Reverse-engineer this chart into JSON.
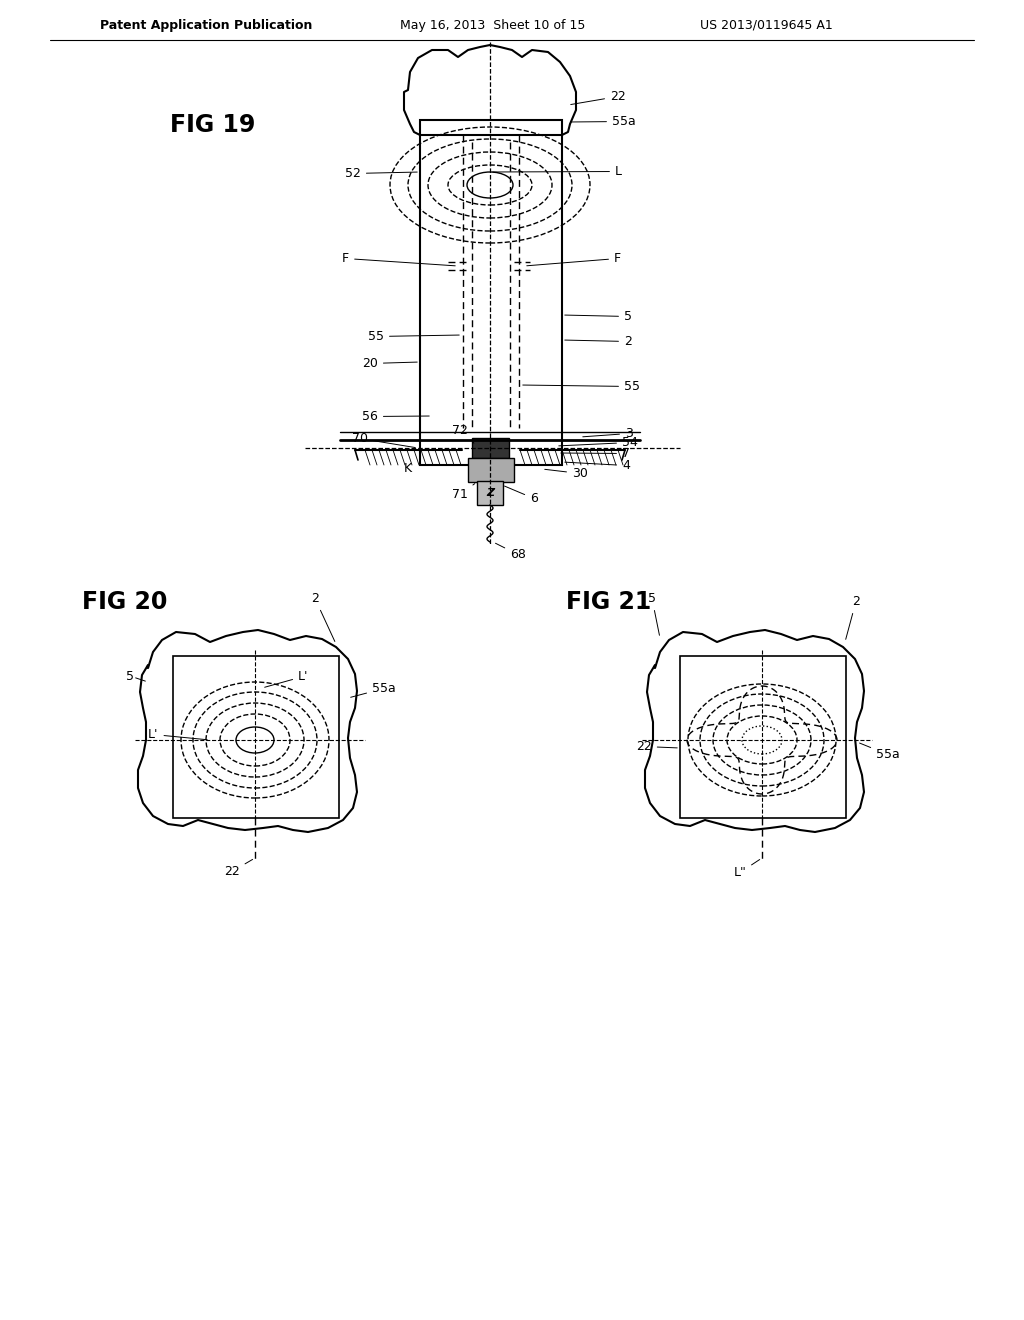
{
  "background_color": "#ffffff",
  "header_text": "Patent Application Publication",
  "header_date": "May 16, 2013  Sheet 10 of 15",
  "header_patent": "US 2013/0119645 A1",
  "fig19_label": "FIG 19",
  "fig20_label": "FIG 20",
  "fig21_label": "FIG 21",
  "line_color": "#000000",
  "dashed_color": "#000000",
  "dark_fill": "#333333",
  "gray_fill": "#888888",
  "light_gray": "#cccccc"
}
